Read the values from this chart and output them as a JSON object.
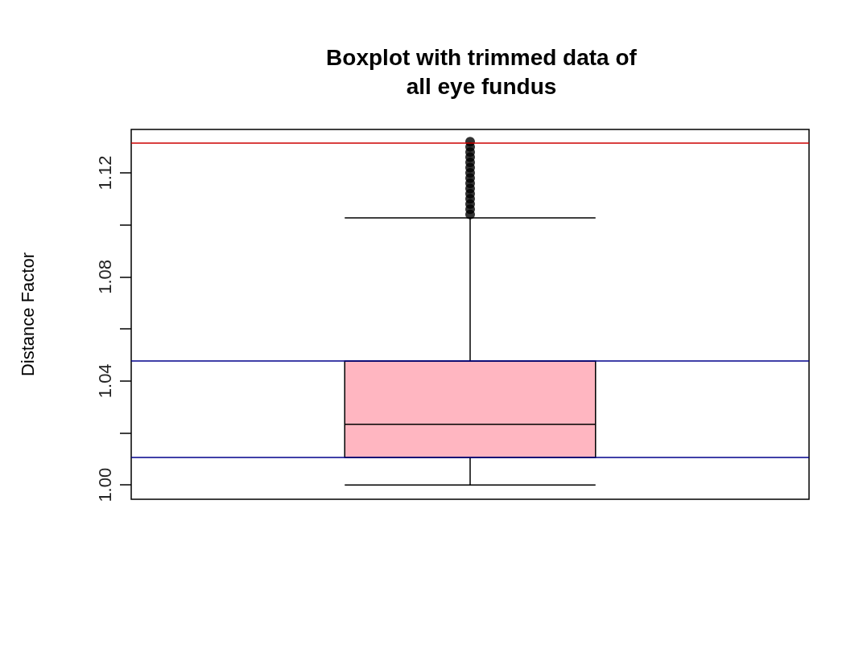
{
  "chart_data": {
    "type": "box",
    "title": "Boxplot with trimmed data of\nall eye fundus",
    "ylabel": "Distance Factor",
    "categories": [
      null
    ],
    "series": [
      {
        "color": "#ffb6c1",
        "boxes": [
          {
            "low": 1.0,
            "q1": 1.0106,
            "median": 1.0233,
            "q3": 1.0476,
            "high": 1.1027,
            "outliers": [
              1.104,
              1.106,
              1.108,
              1.11,
              1.112,
              1.114,
              1.116,
              1.118,
              1.12,
              1.122,
              1.124,
              1.126,
              1.128,
              1.13,
              1.132
            ]
          }
        ]
      }
    ],
    "ylim": [
      0.9945,
      1.1367
    ],
    "yticks": [
      {
        "value": 1.0,
        "label": "1.00"
      },
      {
        "value": 1.02,
        "label": null
      },
      1.04,
      {
        "value": 1.06,
        "label": null
      },
      1.08,
      {
        "value": 1.1,
        "label": null
      },
      1.12
    ],
    "ref_lines": [
      {
        "axis": "y",
        "value": 1.1316,
        "color": "#cc0000"
      },
      {
        "axis": "y",
        "value": 1.0476,
        "color": "#00008b"
      },
      {
        "axis": "y",
        "value": 1.0106,
        "color": "#00008b"
      }
    ],
    "grid": false,
    "marker": "circle"
  }
}
